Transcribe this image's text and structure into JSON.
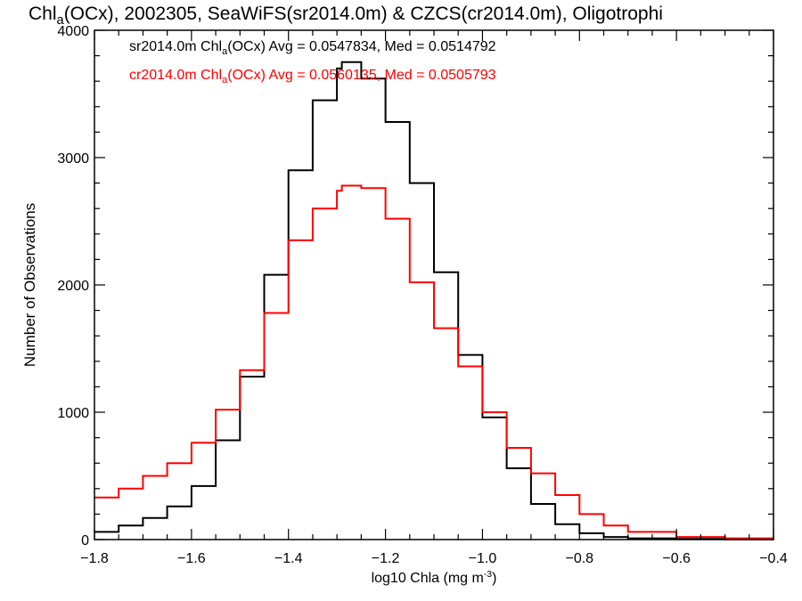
{
  "title": {
    "pre": "Chl",
    "sub": "a",
    "post": "(OCx), 2002305, SeaWiFS(sr2014.0m) & CZCS(cr2014.0m), Oligotrophi"
  },
  "stats": [
    {
      "pre": "sr2014.0m Chl",
      "sub": "a",
      "post": "(OCx) Avg = 0.0547834, Med = 0.0514792",
      "color": "#000000"
    },
    {
      "pre": "cr2014.0m Chl",
      "sub": "a",
      "post": "(OCx) Avg = 0.0560135, Med = 0.0505793",
      "color": "#ff0000"
    }
  ],
  "axes": {
    "ylabel": "Number of Observations",
    "xlabel": {
      "pre": "log10 Chla (mg m",
      "sup": "-3",
      "post": ")"
    }
  },
  "chart_data": {
    "type": "line",
    "step": true,
    "xlim": [
      -1.8,
      -0.4
    ],
    "ylim": [
      0,
      4000
    ],
    "xticks": [
      -1.8,
      -1.6,
      -1.4,
      -1.2,
      -1.0,
      -0.8,
      -0.6,
      -0.4
    ],
    "xtick_labels": [
      "−1.8",
      "−1.6",
      "−1.4",
      "−1.2",
      "−1.0",
      "−0.8",
      "−0.6",
      "−0.4"
    ],
    "yticks": [
      0,
      1000,
      2000,
      3000,
      4000
    ],
    "ytick_labels": [
      "0",
      "1000",
      "2000",
      "3000",
      "4000"
    ],
    "grid": false,
    "x": [
      -1.8,
      -1.75,
      -1.7,
      -1.65,
      -1.6,
      -1.55,
      -1.5,
      -1.45,
      -1.4,
      -1.35,
      -1.3,
      -1.29,
      -1.25,
      -1.2,
      -1.15,
      -1.1,
      -1.05,
      -1.0,
      -0.95,
      -0.9,
      -0.85,
      -0.8,
      -0.75,
      -0.7,
      -0.6,
      -0.5,
      -0.4
    ],
    "series": [
      {
        "color": "#000000",
        "values": [
          60,
          110,
          170,
          260,
          420,
          780,
          1280,
          2080,
          2900,
          3450,
          3700,
          3750,
          3620,
          3280,
          2800,
          2100,
          1450,
          960,
          560,
          280,
          120,
          50,
          20,
          10,
          5,
          2,
          0
        ]
      },
      {
        "color": "#ff0000",
        "values": [
          330,
          400,
          500,
          600,
          760,
          1020,
          1330,
          1780,
          2350,
          2600,
          2740,
          2780,
          2760,
          2520,
          2020,
          1660,
          1360,
          1000,
          720,
          520,
          350,
          200,
          110,
          60,
          20,
          10,
          5
        ]
      }
    ]
  }
}
